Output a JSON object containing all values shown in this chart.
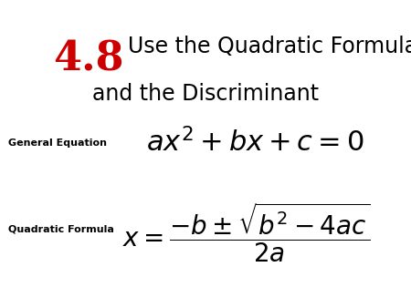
{
  "background_color": "#ffffff",
  "title_number": "4.8",
  "title_number_color": "#cc0000",
  "title_number_fontsize": 32,
  "title_text_line1": "Use the Quadratic Formula",
  "title_text_line2": "and the Discriminant",
  "title_text_color": "#000000",
  "title_text_fontsize": 17,
  "label_general": "General Equation",
  "label_quadratic": "Quadratic Formula",
  "label_fontsize": 8,
  "label_color": "#000000",
  "eq1_latex": "$ax^2 + bx + c = 0$",
  "eq1_fontsize": 22,
  "eq2_latex": "$x = \\dfrac{-b \\pm \\sqrt{b^2 - 4ac}}{2a}$",
  "eq2_fontsize": 20,
  "eq_color": "#000000"
}
